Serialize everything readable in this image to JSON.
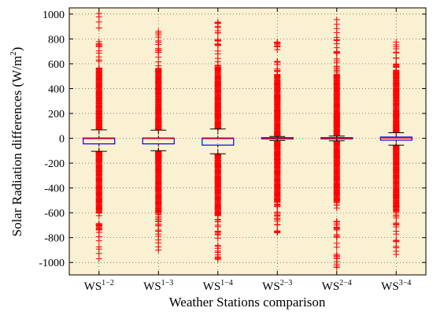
{
  "chart_data": {
    "type": "box",
    "xlabel": "Weather Stations comparison",
    "ylabel": "Solar Radiation differences (W/m",
    "ylabel_sup": "2",
    "ylabel_close": ")",
    "ylim": [
      -1100,
      1050
    ],
    "yticks": [
      -1000,
      -800,
      -600,
      -400,
      -200,
      0,
      200,
      400,
      600,
      800,
      1000
    ],
    "grid": true,
    "plot_background": "#faf0d2",
    "box_color": "#0000ff",
    "median_color": "#ff0000",
    "outlier_color": "#ff0000",
    "whisker_color": "#000000",
    "categories": [
      {
        "base": "WS",
        "sup": "1−2"
      },
      {
        "base": "WS",
        "sup": "1−3"
      },
      {
        "base": "WS",
        "sup": "1−4"
      },
      {
        "base": "WS",
        "sup": "2−3"
      },
      {
        "base": "WS",
        "sup": "2−4"
      },
      {
        "base": "WS",
        "sup": "3−4"
      }
    ],
    "boxes": [
      {
        "q1": -45,
        "median": -3,
        "q3": 2,
        "whisker_low": -105,
        "whisker_high": 68,
        "outlier_min": -970,
        "outlier_max": 1005,
        "dense_low": -830,
        "dense_high": 860
      },
      {
        "q1": -45,
        "median": -2,
        "q3": 2,
        "whisker_low": -100,
        "whisker_high": 65,
        "outlier_min": -900,
        "outlier_max": 860,
        "dense_low": -790,
        "dense_high": 800
      },
      {
        "q1": -55,
        "median": -3,
        "q3": 2,
        "whisker_low": -125,
        "whisker_high": 75,
        "outlier_min": -975,
        "outlier_max": 935,
        "dense_low": -950,
        "dense_high": 920
      },
      {
        "q1": -5,
        "median": 0,
        "q3": 5,
        "whisker_low": -18,
        "whisker_high": 15,
        "outlier_min": -760,
        "outlier_max": 775,
        "dense_low": -740,
        "dense_high": 760
      },
      {
        "q1": -5,
        "median": 0,
        "q3": 5,
        "whisker_low": -20,
        "whisker_high": 18,
        "outlier_min": -1040,
        "outlier_max": 955,
        "dense_low": -980,
        "dense_high": 820
      },
      {
        "q1": -15,
        "median": 2,
        "q3": 10,
        "whisker_low": -55,
        "whisker_high": 45,
        "outlier_min": -935,
        "outlier_max": 775,
        "dense_low": -840,
        "dense_high": 700
      }
    ]
  }
}
